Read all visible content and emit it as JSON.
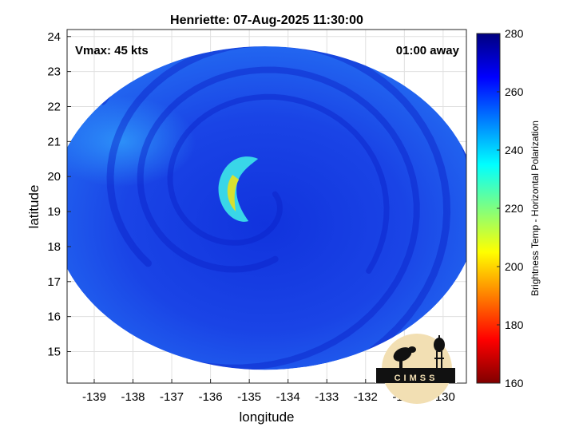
{
  "chart_data": {
    "type": "heatmap",
    "title": "Henriette: 07-Aug-2025 11:30:00",
    "xlabel": "longitude",
    "ylabel": "latitude",
    "xlim": [
      -139.7,
      -129.4
    ],
    "ylim": [
      14.1,
      24.2
    ],
    "xticks": [
      -139,
      -138,
      -137,
      -136,
      -135,
      -134,
      -133,
      -132,
      -131,
      -130
    ],
    "yticks": [
      15,
      16,
      17,
      18,
      19,
      20,
      21,
      22,
      23,
      24
    ],
    "grid": true,
    "annotations": {
      "vmax": "Vmax: 45 kts",
      "timing": "01:00 away"
    },
    "colorbar": {
      "label": "Brightness Temp - Horizontal Polarization",
      "range": [
        160,
        280
      ],
      "ticks": [
        160,
        180,
        200,
        220,
        240,
        260,
        280
      ],
      "colormap": "jet"
    },
    "field": {
      "swath_center_lon": -134.6,
      "swath_center_lat": 19.1,
      "swath_radius_deg": 5.5,
      "background_tb": 262,
      "eyewall_band": {
        "center_lon": -135.2,
        "center_lat": 19.5,
        "min_tb": 221,
        "curve": "C-shaped, opening east"
      }
    }
  },
  "logo": {
    "text": "CIMSS"
  },
  "colors": {
    "ocean_tb": "#1a3ee8",
    "min_band": "#d8e030",
    "axis": "#262626",
    "grid": "#e0e0e0"
  }
}
